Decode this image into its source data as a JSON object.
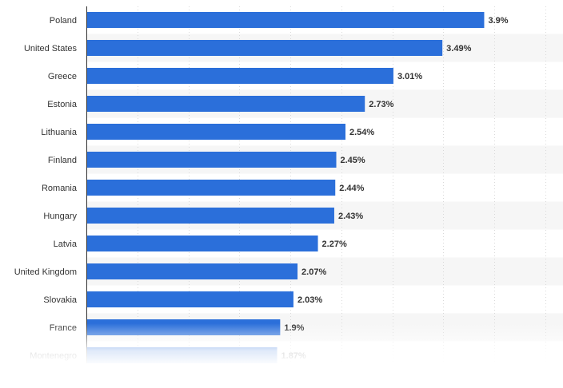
{
  "chart_data": {
    "type": "bar",
    "orientation": "horizontal",
    "categories": [
      "Poland",
      "United States",
      "Greece",
      "Estonia",
      "Lithuania",
      "Finland",
      "Romania",
      "Hungary",
      "Latvia",
      "United Kingdom",
      "Slovakia",
      "France",
      "Montenegro"
    ],
    "values": [
      3.9,
      3.49,
      3.01,
      2.73,
      2.54,
      2.45,
      2.44,
      2.43,
      2.27,
      2.07,
      2.03,
      1.9,
      1.87
    ],
    "value_labels": [
      "3.9%",
      "3.49%",
      "3.01%",
      "2.73%",
      "2.54%",
      "2.45%",
      "2.44%",
      "2.43%",
      "2.27%",
      "2.07%",
      "2.03%",
      "1.9%",
      "1.87%"
    ],
    "xlim": [
      0,
      4.5
    ],
    "grid": true,
    "bar_color": "#2b6fda",
    "stripe_color": "#f6f6f6",
    "label_color": "#333333",
    "gridline_color": "#d9d9d9"
  }
}
